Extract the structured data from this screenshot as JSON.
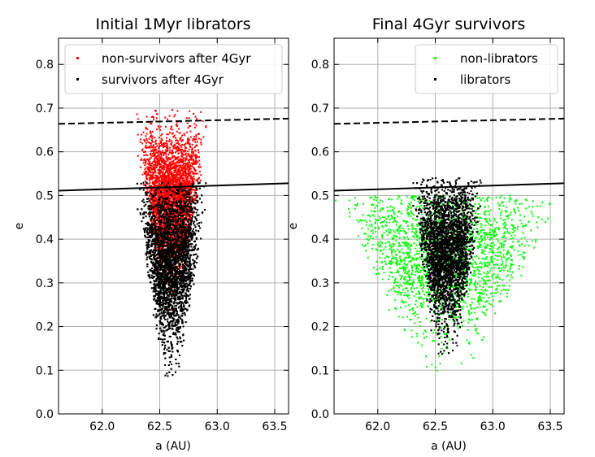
{
  "figure": {
    "background": "#ffffff"
  },
  "chart_data": [
    {
      "type": "scatter",
      "title": "Initial 1Myr librators",
      "xlabel": "a (AU)",
      "ylabel": "e",
      "xlim": [
        61.62,
        63.62
      ],
      "ylim": [
        0.0,
        0.86
      ],
      "xticks": [
        "62.0",
        "62.5",
        "63.0",
        "63.5"
      ],
      "yticks": [
        "0.0",
        "0.1",
        "0.2",
        "0.3",
        "0.4",
        "0.5",
        "0.6",
        "0.7",
        "0.8"
      ],
      "grid": true,
      "legend_position": "upper-left",
      "series": [
        {
          "name": "non-survivors after 4Gyr",
          "color": "#ff0000",
          "distribution": {
            "count": 3300,
            "a_center": 62.6,
            "a_half_width_top": 0.36,
            "a_half_width_bottom": 0.02,
            "e_center": 0.5,
            "e_spread": 0.075,
            "e_min": 0.19,
            "e_max": 0.7
          }
        },
        {
          "name": "survivors after 4Gyr",
          "color": "#000000",
          "distribution": {
            "count": 6500,
            "a_center": 62.6,
            "a_half_width_top": 0.33,
            "a_half_width_bottom": 0.02,
            "e_center": 0.36,
            "e_spread": 0.09,
            "e_min": 0.01,
            "e_max": 0.53
          }
        }
      ],
      "reference_lines": [
        {
          "style": "dashed",
          "color": "#000000",
          "points": [
            [
              61.62,
              0.664
            ],
            [
              63.62,
              0.676
            ]
          ]
        },
        {
          "style": "solid",
          "color": "#000000",
          "points": [
            [
              61.62,
              0.511
            ],
            [
              63.62,
              0.528
            ]
          ]
        }
      ]
    },
    {
      "type": "scatter",
      "title": "Final 4Gyr survivors",
      "xlabel": "a (AU)",
      "ylabel": "e",
      "xlim": [
        61.62,
        63.62
      ],
      "ylim": [
        0.0,
        0.86
      ],
      "xticks": [
        "62.0",
        "62.5",
        "63.0",
        "63.5"
      ],
      "yticks": [
        "0.0",
        "0.1",
        "0.2",
        "0.3",
        "0.4",
        "0.5",
        "0.6",
        "0.7",
        "0.8"
      ],
      "grid": true,
      "legend_position": "upper-right",
      "series": [
        {
          "name": "non-librators",
          "color": "#00ff00",
          "distribution": {
            "count": 2000,
            "a_center": 62.6,
            "a_half_width_top": 1.0,
            "a_half_width_bottom": 0.03,
            "e_center": 0.38,
            "e_spread": 0.09,
            "e_min": 0.01,
            "e_max": 0.5
          }
        },
        {
          "name": "librators",
          "color": "#000000",
          "distribution": {
            "count": 6000,
            "a_center": 62.6,
            "a_half_width_top": 0.33,
            "a_half_width_bottom": 0.02,
            "e_center": 0.38,
            "e_spread": 0.08,
            "e_min": 0.01,
            "e_max": 0.54
          }
        }
      ],
      "reference_lines": [
        {
          "style": "dashed",
          "color": "#000000",
          "points": [
            [
              61.62,
              0.664
            ],
            [
              63.62,
              0.676
            ]
          ]
        },
        {
          "style": "solid",
          "color": "#000000",
          "points": [
            [
              61.62,
              0.511
            ],
            [
              63.62,
              0.528
            ]
          ]
        }
      ]
    }
  ]
}
